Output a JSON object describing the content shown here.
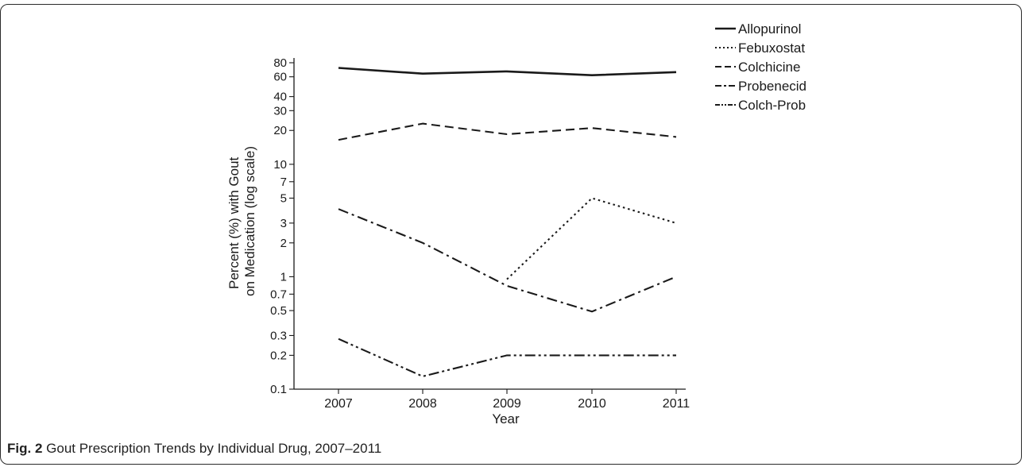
{
  "caption": {
    "label": "Fig. 2",
    "text": "Gout Prescription Trends by Individual Drug, 2007–2011"
  },
  "chart_data": {
    "type": "line",
    "xlabel": "Year",
    "ylabel_lines": [
      "Percent (%) with Gout",
      "on Medication (log scale)"
    ],
    "y_scale": "log",
    "ylim": [
      0.1,
      80
    ],
    "y_ticks": [
      0.1,
      0.2,
      0.3,
      0.5,
      0.7,
      1,
      2,
      3,
      5,
      7,
      10,
      20,
      30,
      40,
      60,
      80
    ],
    "y_tick_labels": [
      "0.1",
      "0.2",
      "0.3",
      "0.5",
      "0.7",
      "1",
      "2",
      "3",
      "5",
      "7",
      "10",
      "20",
      "30",
      "40",
      "60",
      "80"
    ],
    "x": [
      "2007",
      "2008",
      "2009",
      "2010",
      "2011"
    ],
    "grid": false,
    "legend_position": "top-right",
    "series": [
      {
        "name": "Allopurinol",
        "dash": "solid",
        "values": [
          72,
          64,
          67,
          62,
          66
        ]
      },
      {
        "name": "Febuxostat",
        "dash": "dotted",
        "values": [
          null,
          null,
          0.95,
          5,
          3
        ]
      },
      {
        "name": "Colchicine",
        "dash": "dashed",
        "values": [
          16.5,
          23,
          18.5,
          21,
          17.5
        ]
      },
      {
        "name": "Probenecid",
        "dash": "dash-dot",
        "values": [
          4,
          2,
          0.83,
          0.49,
          1
        ]
      },
      {
        "name": "Colch-Prob",
        "dash": "dash-dot-dot",
        "values": [
          0.28,
          0.13,
          0.2,
          0.2,
          0.2
        ]
      }
    ]
  }
}
